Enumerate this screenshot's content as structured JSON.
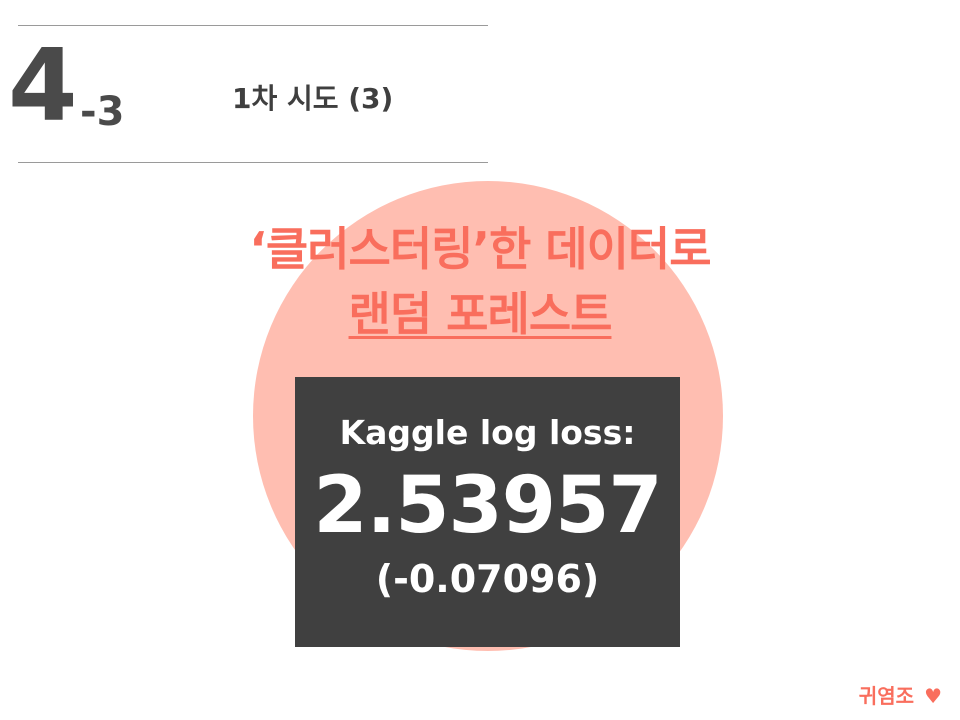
{
  "header": {
    "section_number": "4",
    "section_sub": "-3",
    "title": "1차 시도 (3)"
  },
  "headline": {
    "line1": "‘클러스터링’한 데이터로",
    "line2": "랜덤 포레스트"
  },
  "score": {
    "label": "Kaggle log loss:",
    "value": "2.53957",
    "delta": "(-0.07096)"
  },
  "footer": {
    "team": "귀염조",
    "heart": "♥"
  },
  "colors": {
    "accent": "#f96e5d",
    "circle": "#ffbeb1",
    "box": "#404040",
    "text_dark": "#4a4a4a"
  }
}
